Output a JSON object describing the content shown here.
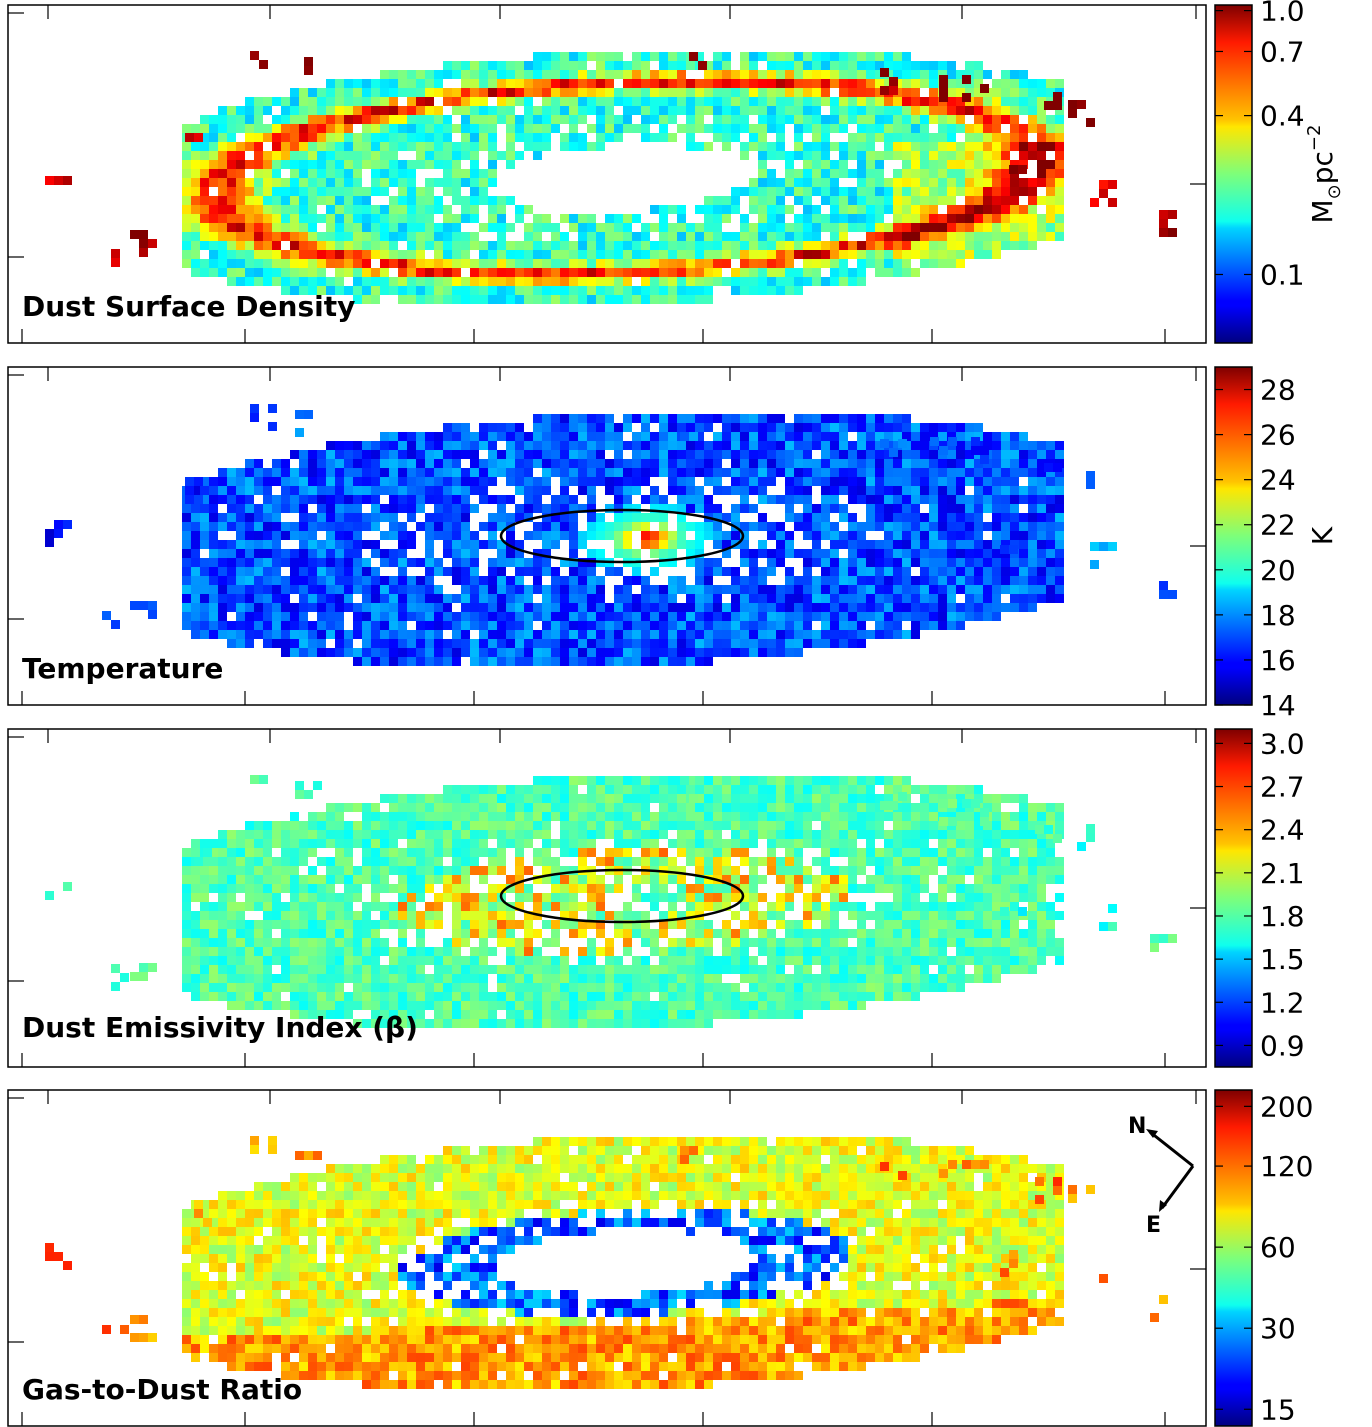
{
  "figure": {
    "panels": [
      {
        "id": "dust-surface-density",
        "title": "Dust Surface Density",
        "colorbar": {
          "scale": "log",
          "range": [
            0.055,
            1.05
          ],
          "ticks": [
            "1.0",
            "0.7",
            "0.4",
            "0.1"
          ],
          "tick_values": [
            1.0,
            0.7,
            0.4,
            0.1
          ],
          "unit_main": "M",
          "unit_sub": "⊙",
          "unit_tail": "pc",
          "unit_sup": "−2"
        },
        "map": {
          "colormap": "jet",
          "pattern": "density",
          "has_ellipse": false
        }
      },
      {
        "id": "temperature",
        "title": "Temperature",
        "colorbar": {
          "scale": "linear",
          "range": [
            14,
            29
          ],
          "ticks": [
            "28",
            "26",
            "24",
            "22",
            "20",
            "18",
            "16",
            "14"
          ],
          "tick_values": [
            28,
            26,
            24,
            22,
            20,
            18,
            16,
            14
          ],
          "unit_main": "K",
          "unit_sub": "",
          "unit_tail": "",
          "unit_sup": ""
        },
        "map": {
          "colormap": "jet",
          "pattern": "temperature",
          "has_ellipse": true
        }
      },
      {
        "id": "emissivity-index",
        "title": "Dust Emissivity Index (β)",
        "colorbar": {
          "scale": "linear",
          "range": [
            0.75,
            3.1
          ],
          "ticks": [
            "3.0",
            "2.7",
            "2.4",
            "2.1",
            "1.8",
            "1.5",
            "1.2",
            "0.9"
          ],
          "tick_values": [
            3.0,
            2.7,
            2.4,
            2.1,
            1.8,
            1.5,
            1.2,
            0.9
          ],
          "unit_main": "",
          "unit_sub": "",
          "unit_tail": "",
          "unit_sup": ""
        },
        "map": {
          "colormap": "jet",
          "pattern": "beta",
          "has_ellipse": true
        }
      },
      {
        "id": "gas-to-dust-ratio",
        "title": "Gas-to-Dust Ratio",
        "colorbar": {
          "scale": "log",
          "range": [
            13,
            230
          ],
          "ticks": [
            "200",
            "120",
            "60",
            "30",
            "15"
          ],
          "tick_values": [
            200,
            120,
            60,
            30,
            15
          ],
          "unit_main": "",
          "unit_sub": "",
          "unit_tail": "",
          "unit_sup": ""
        },
        "map": {
          "colormap": "jet",
          "pattern": "gdr",
          "has_ellipse": false
        },
        "compass": {
          "north": "N",
          "east": "E"
        }
      }
    ]
  }
}
